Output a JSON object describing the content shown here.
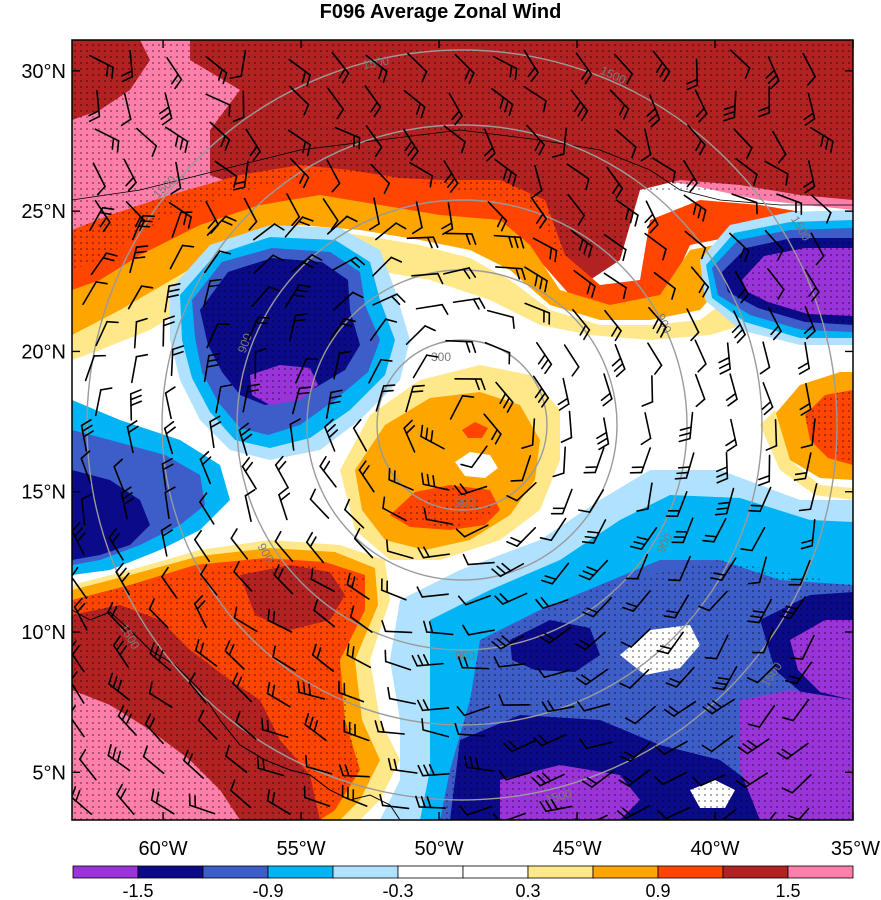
{
  "title": "F096 Average Zonal Wind",
  "lat_labels": [
    "30°N",
    "25°N",
    "20°N",
    "15°N",
    "10°N",
    "5°N"
  ],
  "lat_values": [
    30,
    25,
    20,
    15,
    10,
    5
  ],
  "lon_labels": [
    "60°W",
    "55°W",
    "50°W",
    "45°W",
    "40°W",
    "35°W"
  ],
  "lon_values": [
    -60,
    -55,
    -50,
    -45,
    -40,
    -35
  ],
  "extent": {
    "lon_min": -63.3,
    "lon_max": -35,
    "lat_min": 3.3,
    "lat_max": 31.1
  },
  "range_ring_labels": [
    "300",
    "900",
    "1500"
  ],
  "colorbar": {
    "colors": [
      "#9a33d9",
      "#0b0b8a",
      "#3d5ec9",
      "#00b4f5",
      "#b0e2ff",
      "#ffffff",
      "#ffffff",
      "#ffe88a",
      "#ffa500",
      "#ff4500",
      "#b22222",
      "#ff7faa"
    ],
    "tick_labels": [
      "-1.5",
      "-0.9",
      "-0.3",
      "0.3",
      "0.9",
      "1.5"
    ],
    "tick_values": [
      -1.5,
      -0.9,
      -0.3,
      0.3,
      0.9,
      1.5
    ]
  },
  "colors": {
    "pink": "#ff7faa",
    "darkred": "#b22222",
    "orangered": "#ff4500",
    "orange": "#ffa500",
    "lightyellow": "#ffe88a",
    "white": "#ffffff",
    "lightblue": "#b0e2ff",
    "skyblue": "#00b4f5",
    "royalblue": "#3d5ec9",
    "navy": "#0b0b8a",
    "purple": "#9a33d9",
    "ring": "#9a9a9a"
  }
}
